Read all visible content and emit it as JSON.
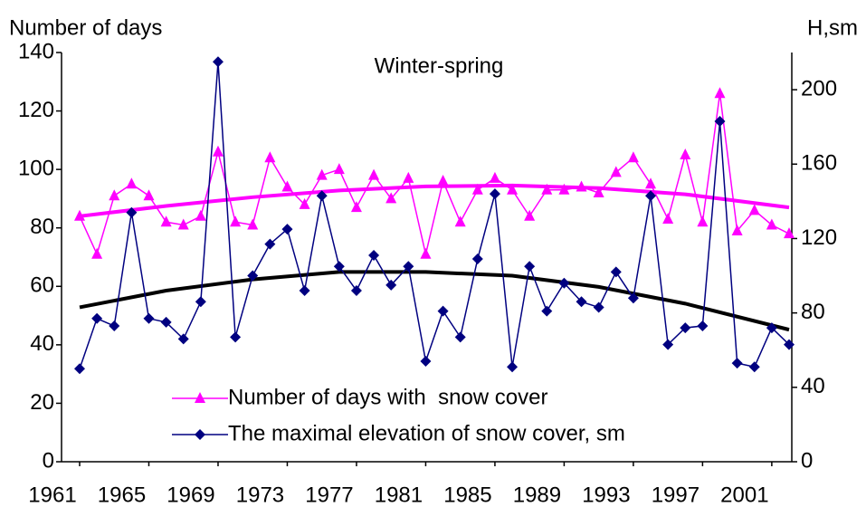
{
  "chart_data": {
    "type": "line",
    "title": "Winter-spring",
    "y_label": "Number of days",
    "y2_label": "H,sm",
    "x": [
      1961,
      1962,
      1963,
      1964,
      1965,
      1966,
      1967,
      1968,
      1969,
      1970,
      1971,
      1972,
      1973,
      1974,
      1975,
      1976,
      1977,
      1978,
      1979,
      1980,
      1981,
      1982,
      1983,
      1984,
      1985,
      1986,
      1987,
      1988,
      1989,
      1990,
      1991,
      1992,
      1993,
      1994,
      1995,
      1996,
      1997,
      1998,
      1999,
      2000,
      2001,
      2002
    ],
    "xlim": [
      1961,
      2002
    ],
    "xticks": [
      1961,
      1965,
      1969,
      1973,
      1977,
      1981,
      1985,
      1989,
      1993,
      1997,
      2001
    ],
    "ylim": [
      0,
      140
    ],
    "yticks": [
      0,
      20,
      40,
      60,
      80,
      100,
      120,
      140
    ],
    "y2lim": [
      0,
      220
    ],
    "y2ticks": [
      0,
      40,
      80,
      120,
      160,
      200
    ],
    "legend": "bottom-left",
    "series": [
      {
        "name": "Number of days with  snow cover",
        "color": "#ff00ff",
        "marker": "triangle",
        "values": [
          84,
          71,
          91,
          95,
          91,
          82,
          81,
          84,
          106,
          82,
          81,
          104,
          94,
          88,
          98,
          100,
          87,
          98,
          90,
          97,
          71,
          96,
          82,
          93,
          97,
          93,
          84,
          93,
          93,
          94,
          92,
          99,
          104,
          95,
          83,
          105,
          82,
          126,
          79,
          86,
          81,
          78
        ],
        "trend": {
          "color": "#ff00ff",
          "x": [
            1961,
            1966,
            1971,
            1976,
            1981,
            1986,
            1991,
            1996,
            2002
          ],
          "values": [
            84,
            87.5,
            90.5,
            92.8,
            94.2,
            94.5,
            93.6,
            91.5,
            87
          ]
        }
      },
      {
        "name": "The maximal elevation of snow cover, sm",
        "color": "#000080",
        "marker": "diamond",
        "axis": "y2",
        "values": [
          50,
          77,
          73,
          134,
          77,
          75,
          66,
          86,
          215,
          67,
          100,
          117,
          125,
          92,
          143,
          105,
          92,
          111,
          95,
          105,
          54,
          81,
          67,
          109,
          144,
          51,
          105,
          81,
          96,
          86,
          83,
          102,
          88,
          143,
          63,
          72,
          73,
          183,
          53,
          51,
          72,
          63
        ],
        "trend": {
          "color": "#000000",
          "x": [
            1961,
            1966,
            1971,
            1976,
            1981,
            1986,
            1991,
            1996,
            2002
          ],
          "values": [
            83,
            92,
            98,
            102,
            102,
            100,
            94,
            85,
            71
          ]
        }
      }
    ]
  }
}
